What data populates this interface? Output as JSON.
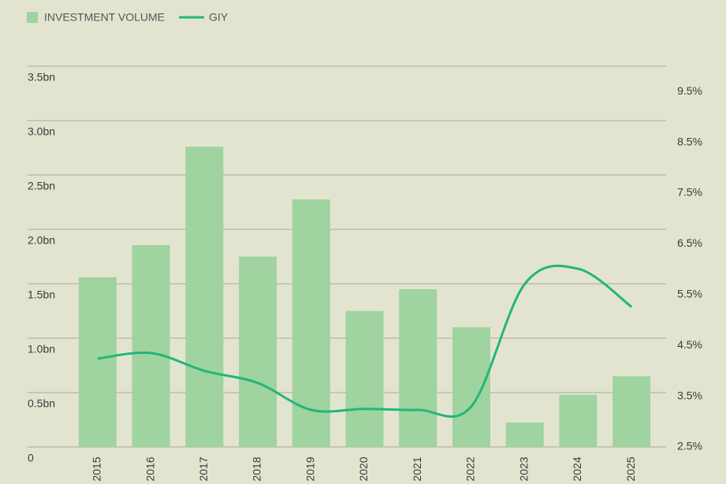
{
  "chart_data": {
    "type": "bar",
    "categories": [
      "2015",
      "2016",
      "2017",
      "2018",
      "2019",
      "2020",
      "2021",
      "2022",
      "2023",
      "2024",
      "2025"
    ],
    "series": [
      {
        "name": "INVESTMENT VOLUME",
        "type": "bar",
        "color": "#9fd3a0",
        "values": [
          1.56,
          1.855,
          2.76,
          1.75,
          2.275,
          1.25,
          1.45,
          1.1,
          0.225,
          0.48,
          0.65
        ]
      },
      {
        "name": "GIY",
        "type": "line",
        "axis": "y2",
        "color": "#22b67a",
        "values": [
          4.24,
          4.35,
          4.0,
          3.76,
          3.23,
          3.25,
          3.23,
          3.3,
          5.71,
          6.01,
          5.26
        ]
      }
    ],
    "ylim": [
      0,
      3.5
    ],
    "yticks": [
      0,
      {
        "value": 0.5,
        "label": "0.5bn"
      },
      {
        "value": 1,
        "label": "1.0bn"
      },
      {
        "value": 1.5,
        "label": "1.5bn"
      },
      {
        "value": 2,
        "label": "2.0bn"
      },
      {
        "value": 2.5,
        "label": "2.5bn"
      },
      {
        "value": 3,
        "label": "3.0bn"
      },
      {
        "value": 3.5,
        "label": "3.5bn"
      }
    ],
    "y2lim": [
      2.5,
      10
    ],
    "y2ticks": [
      {
        "value": 2.5,
        "label": "2.5%"
      },
      {
        "value": 3.5,
        "label": "3.5%"
      },
      {
        "value": 4.5,
        "label": "4.5%"
      },
      {
        "value": 5.5,
        "label": "5.5%"
      },
      {
        "value": 6.5,
        "label": "6.5%"
      },
      {
        "value": 7.5,
        "label": "7.5%"
      },
      {
        "value": 8.5,
        "label": "8.5%"
      },
      {
        "value": 9.5,
        "label": "9.5%"
      }
    ],
    "grid": true,
    "legend": "top-left"
  }
}
